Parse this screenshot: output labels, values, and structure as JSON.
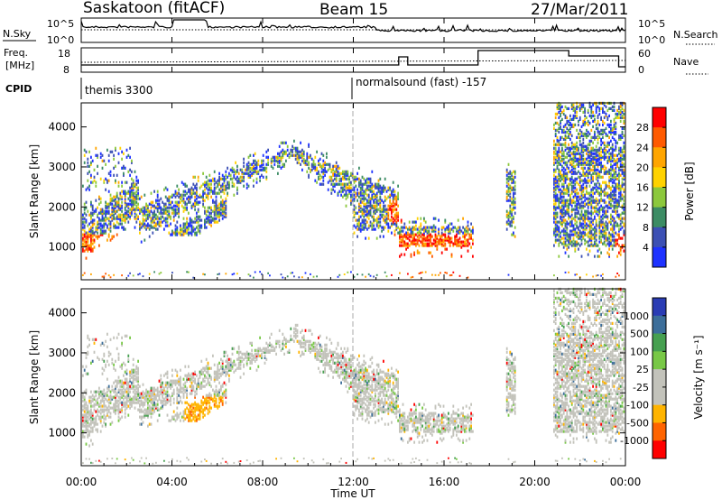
{
  "header": {
    "station": "Saskatoon (fitACF)",
    "beam": "Beam 15",
    "date": "27/Mar/2011"
  },
  "noise_panel": {
    "left_label": "N.Sky",
    "left_ticks": [
      "10^5",
      "10^0"
    ],
    "right_ticks": [
      "10^5",
      "10^0"
    ],
    "right_label": "N.Search",
    "line_color": "#000000"
  },
  "freq_panel": {
    "left_label_1": "Freq.",
    "left_label_2": "[MHz]",
    "left_ticks": [
      "18",
      "8"
    ],
    "right_ticks": [
      "60",
      "0"
    ],
    "right_label": "Nave"
  },
  "cpid_panel": {
    "label": "CPID",
    "modes": [
      {
        "name": "themis 3300",
        "start_hour": 0.0
      },
      {
        "name": "normalsound (fast) -157",
        "start_hour": 12.0
      }
    ]
  },
  "chart_data": [
    {
      "type": "heatmap",
      "name": "power",
      "ylabel": "Slant Range [km]",
      "xlabel": "Time UT",
      "x_ticks": [
        "00:00",
        "04:00",
        "08:00",
        "12:00",
        "16:00",
        "20:00",
        "00:00"
      ],
      "xlim_hours": [
        0,
        24
      ],
      "ylim_km": [
        180,
        4600
      ],
      "y_ticks": [
        1000,
        2000,
        3000,
        4000
      ],
      "colorbar": {
        "label": "Power [dB]",
        "ticks": [
          "28",
          "24",
          "20",
          "16",
          "12",
          "8",
          "4"
        ],
        "colors": [
          "#ff0000",
          "#ff5a00",
          "#ffa500",
          "#ffd200",
          "#8cc83c",
          "#3c8c64",
          "#3c50b4",
          "#1e32ff"
        ]
      },
      "note_values": "scatter returns band: low range near 1000 km 00-01 UT rising to ~3300 km near 09 UT, descending to ~1100 km at 14-17 UT; strong echoes 20-28 dB at 1000-1400 km"
    },
    {
      "type": "heatmap",
      "name": "velocity",
      "ylabel": "Slant Range [km]",
      "xlabel": "Time UT",
      "x_ticks": [
        "00:00",
        "04:00",
        "08:00",
        "12:00",
        "16:00",
        "20:00",
        "00:00"
      ],
      "xlim_hours": [
        0,
        24
      ],
      "ylim_km": [
        180,
        4600
      ],
      "y_ticks": [
        1000,
        2000,
        3000,
        4000
      ],
      "colorbar": {
        "label": "Velocity [m s⁻¹]",
        "ticks": [
          "1000",
          "500",
          "100",
          "25",
          "-25",
          "-100",
          "-500",
          "-1000"
        ],
        "colors": [
          "#2a3cb4",
          "#3c6e9a",
          "#46a050",
          "#78c846",
          "#c3c3bb",
          "#c3c3bb",
          "#ffb400",
          "#ff6400",
          "#ff0000"
        ]
      }
    }
  ]
}
